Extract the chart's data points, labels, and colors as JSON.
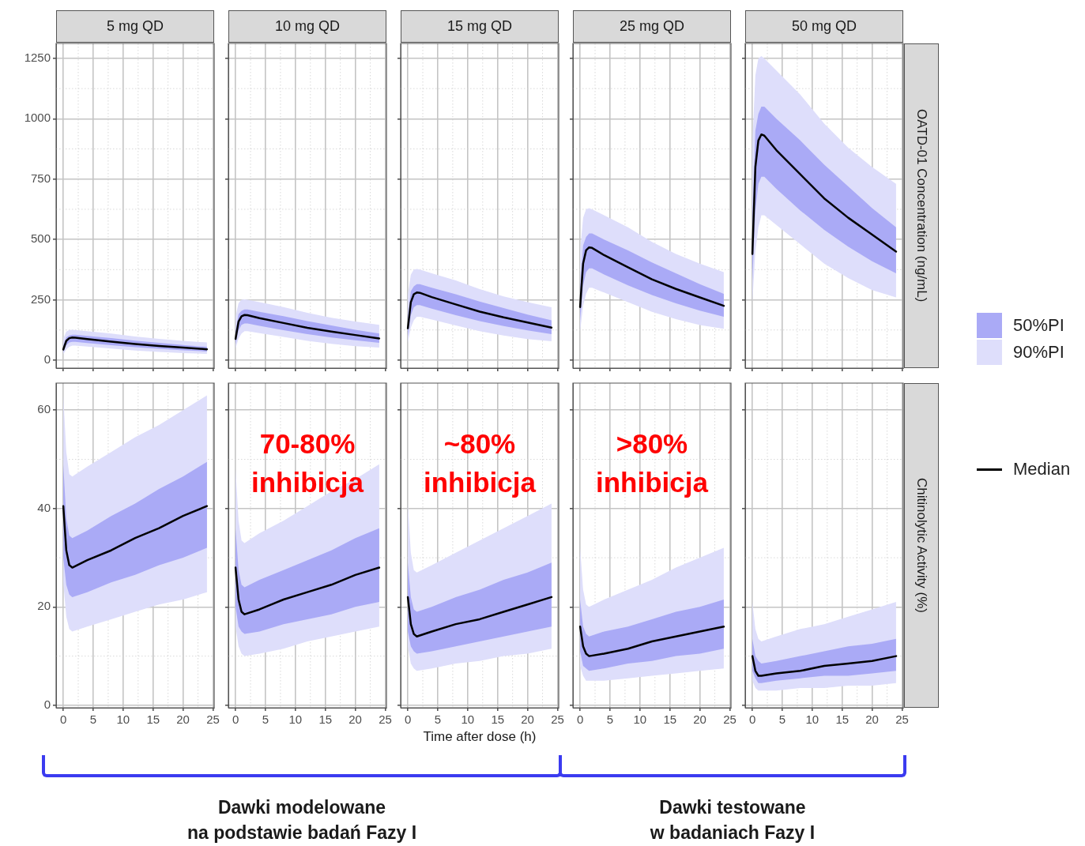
{
  "chart_data": [
    {
      "type": "line",
      "title": "5 mg QD",
      "xlim": [
        -1.2,
        25.2
      ],
      "xticks": [
        0,
        5,
        10,
        15,
        20,
        25
      ],
      "ylim": [
        -33,
        1312
      ],
      "yticks": [
        0,
        250,
        500,
        750,
        1000,
        1250
      ],
      "grid": true,
      "tick_labels": "y",
      "legend": "right",
      "x": [
        0,
        0.5,
        1,
        1.5,
        2,
        4,
        8,
        12,
        16,
        20,
        24
      ],
      "series": [
        {
          "name": "50%PI",
          "color": "#aaaaf6",
          "values": [
            null,
            null,
            null,
            null,
            null,
            null,
            null,
            null,
            null,
            null,
            null
          ],
          "lower": [
            33,
            62,
            73,
            76,
            76,
            71,
            62,
            54,
            47,
            41,
            36
          ],
          "upper": [
            60,
            95,
            102,
            105,
            105,
            100,
            91,
            81,
            72,
            63,
            55
          ]
        },
        {
          "name": "90%PI",
          "color": "#dedefb",
          "values": [
            null,
            null,
            null,
            null,
            null,
            null,
            null,
            null,
            null,
            null,
            null
          ],
          "lower": [
            24,
            45,
            55,
            60,
            60,
            56,
            48,
            40,
            34,
            29,
            26
          ],
          "upper": [
            90,
            118,
            125,
            126,
            125,
            120,
            110,
            98,
            88,
            80,
            73
          ]
        },
        {
          "name": "Median",
          "color": "#000000",
          "values": [
            44,
            80,
            91,
            93.5,
            93,
            87,
            77,
            67,
            59,
            52,
            45
          ]
        }
      ]
    },
    {
      "type": "line",
      "title": "10 mg QD",
      "xlim": [
        -1.2,
        25.2
      ],
      "xticks": [
        0,
        5,
        10,
        15,
        20,
        25
      ],
      "ylim": [
        -33,
        1312
      ],
      "yticks": [
        0,
        250,
        500,
        750,
        1000,
        1250
      ],
      "grid": true,
      "tick_labels": false,
      "x": [
        0,
        0.5,
        1,
        1.5,
        2,
        4,
        8,
        12,
        16,
        20,
        24
      ],
      "series": [
        {
          "color": "#aaaaf6",
          "values": [
            null,
            null,
            null,
            null,
            null,
            null,
            null,
            null,
            null,
            null,
            null
          ],
          "lower": [
            66,
            124,
            146,
            152,
            152,
            142,
            124,
            108,
            94,
            82,
            72
          ],
          "upper": [
            120,
            190,
            204,
            210,
            210,
            200,
            182,
            162,
            144,
            126,
            110
          ]
        },
        {
          "color": "#dedefb",
          "values": [
            null,
            null,
            null,
            null,
            null,
            null,
            null,
            null,
            null,
            null,
            null
          ],
          "lower": [
            48,
            90,
            110,
            120,
            120,
            112,
            96,
            80,
            68,
            58,
            52
          ],
          "upper": [
            180,
            236,
            250,
            252,
            250,
            240,
            220,
            196,
            176,
            160,
            146
          ]
        },
        {
          "color": "#000000",
          "values": [
            88,
            160,
            182,
            187,
            186,
            174,
            154,
            134,
            118,
            104,
            90
          ]
        }
      ]
    },
    {
      "type": "line",
      "title": "15 mg QD",
      "xlim": [
        -1.2,
        25.2
      ],
      "xticks": [
        0,
        5,
        10,
        15,
        20,
        25
      ],
      "ylim": [
        -33,
        1312
      ],
      "yticks": [
        0,
        250,
        500,
        750,
        1000,
        1250
      ],
      "grid": true,
      "tick_labels": false,
      "x": [
        0,
        0.5,
        1,
        1.5,
        2,
        4,
        8,
        12,
        16,
        20,
        24
      ],
      "series": [
        {
          "color": "#aaaaf6",
          "values": [
            null,
            null,
            null,
            null,
            null,
            null,
            null,
            null,
            null,
            null,
            null
          ],
          "lower": [
            99,
            186,
            219,
            228,
            228,
            213,
            186,
            162,
            141,
            123,
            108
          ],
          "upper": [
            180,
            285,
            306,
            315,
            315,
            300,
            273,
            243,
            216,
            189,
            165
          ]
        },
        {
          "color": "#dedefb",
          "values": [
            null,
            null,
            null,
            null,
            null,
            null,
            null,
            null,
            null,
            null,
            null
          ],
          "lower": [
            72,
            135,
            165,
            180,
            180,
            168,
            144,
            120,
            102,
            87,
            78
          ],
          "upper": [
            270,
            354,
            375,
            378,
            375,
            360,
            330,
            294,
            264,
            240,
            219
          ]
        },
        {
          "color": "#000000",
          "values": [
            132,
            240,
            273,
            280,
            279,
            261,
            231,
            201,
            177,
            156,
            135
          ]
        }
      ]
    },
    {
      "type": "line",
      "title": "25 mg QD",
      "xlim": [
        -1.2,
        25.2
      ],
      "xticks": [
        0,
        5,
        10,
        15,
        20,
        25
      ],
      "ylim": [
        -33,
        1312
      ],
      "yticks": [
        0,
        250,
        500,
        750,
        1000,
        1250
      ],
      "grid": true,
      "tick_labels": false,
      "x": [
        0,
        0.5,
        1,
        1.5,
        2,
        4,
        8,
        12,
        16,
        20,
        24
      ],
      "series": [
        {
          "color": "#aaaaf6",
          "values": [
            null,
            null,
            null,
            null,
            null,
            null,
            null,
            null,
            null,
            null,
            null
          ],
          "lower": [
            165,
            310,
            365,
            380,
            380,
            355,
            310,
            270,
            235,
            205,
            180
          ],
          "upper": [
            300,
            475,
            510,
            525,
            525,
            500,
            455,
            405,
            360,
            315,
            275
          ]
        },
        {
          "color": "#dedefb",
          "values": [
            null,
            null,
            null,
            null,
            null,
            null,
            null,
            null,
            null,
            null,
            null
          ],
          "lower": [
            120,
            225,
            275,
            300,
            300,
            280,
            240,
            200,
            170,
            145,
            130
          ],
          "upper": [
            450,
            590,
            625,
            630,
            625,
            600,
            550,
            490,
            440,
            400,
            365
          ]
        },
        {
          "color": "#000000",
          "values": [
            220,
            400,
            455,
            467,
            465,
            435,
            385,
            335,
            295,
            260,
            225
          ]
        }
      ]
    },
    {
      "type": "line",
      "title": "50 mg QD",
      "ylabel": "OATD-01 Concentration (ng/mL)",
      "xlim": [
        -1.2,
        25.2
      ],
      "xticks": [
        0,
        5,
        10,
        15,
        20,
        25
      ],
      "ylim": [
        -33,
        1312
      ],
      "yticks": [
        0,
        250,
        500,
        750,
        1000,
        1250
      ],
      "grid": true,
      "tick_labels": false,
      "x": [
        0,
        0.5,
        1,
        1.5,
        2,
        4,
        8,
        12,
        16,
        20,
        24
      ],
      "series": [
        {
          "color": "#aaaaf6",
          "values": [
            null,
            null,
            null,
            null,
            null,
            null,
            null,
            null,
            null,
            null,
            null
          ],
          "lower": [
            330,
            620,
            730,
            760,
            760,
            710,
            620,
            540,
            470,
            410,
            360
          ],
          "upper": [
            600,
            950,
            1020,
            1050,
            1050,
            1000,
            910,
            810,
            720,
            630,
            550
          ]
        },
        {
          "color": "#dedefb",
          "values": [
            null,
            null,
            null,
            null,
            null,
            null,
            null,
            null,
            null,
            null,
            null
          ],
          "lower": [
            240,
            450,
            550,
            600,
            600,
            560,
            480,
            400,
            340,
            290,
            260
          ],
          "upper": [
            900,
            1180,
            1250,
            1260,
            1250,
            1200,
            1100,
            980,
            880,
            800,
            730
          ]
        },
        {
          "color": "#000000",
          "values": [
            440,
            800,
            910,
            935,
            930,
            870,
            770,
            670,
            590,
            520,
            450
          ]
        }
      ]
    },
    {
      "type": "line",
      "xlim": [
        -1.2,
        25.2
      ],
      "xticks": [
        0,
        5,
        10,
        15,
        20,
        25
      ],
      "ylim": [
        -0.5,
        65.5
      ],
      "yticks": [
        0,
        20,
        40,
        60
      ],
      "grid": true,
      "x": [
        0,
        0.5,
        1,
        1.5,
        4,
        8,
        12,
        16,
        20,
        24
      ],
      "series": [
        {
          "color": "#aaaaf6",
          "values": [
            null,
            null,
            null,
            null,
            null,
            null,
            null,
            null,
            null,
            null
          ],
          "lower": [
            30,
            24.5,
            22.5,
            22,
            23,
            25,
            26.5,
            28.5,
            30,
            32
          ],
          "upper": [
            49,
            38,
            34.5,
            34,
            35.5,
            38.5,
            41,
            44,
            46.5,
            49.5
          ]
        },
        {
          "color": "#dedefb",
          "values": [
            null,
            null,
            null,
            null,
            null,
            null,
            null,
            null,
            null,
            null
          ],
          "lower": [
            25,
            18,
            15.5,
            15,
            16,
            17.5,
            19,
            20.5,
            21.5,
            23
          ],
          "upper": [
            63,
            51.5,
            47,
            46.5,
            48.5,
            51.5,
            54.5,
            57,
            60,
            63
          ]
        },
        {
          "color": "#000000",
          "values": [
            40.5,
            31.5,
            28.5,
            28,
            29.5,
            31.5,
            34,
            36,
            38.5,
            40.5
          ]
        }
      ]
    },
    {
      "type": "line",
      "xlim": [
        -1.2,
        25.2
      ],
      "xticks": [
        0,
        5,
        10,
        15,
        20,
        25
      ],
      "ylim": [
        -0.5,
        65.5
      ],
      "yticks": [
        0,
        20,
        40,
        60
      ],
      "grid": true,
      "tick_labels": "x",
      "annotations": [
        "70-80%\ninhibicja",
        "Dawki modelowane\nna podstawie badań Fazy I"
      ],
      "x": [
        0,
        0.5,
        1,
        1.5,
        4,
        8,
        12,
        16,
        20,
        24
      ],
      "series": [
        {
          "color": "#aaaaf6",
          "values": [
            null,
            null,
            null,
            null,
            null,
            null,
            null,
            null,
            null,
            null
          ],
          "lower": [
            20,
            16,
            15,
            14.5,
            15,
            16.5,
            17.5,
            18.5,
            20,
            21
          ],
          "upper": [
            36,
            27.5,
            24.5,
            24,
            25.5,
            27.5,
            29.5,
            31.5,
            34,
            36
          ]
        },
        {
          "color": "#dedefb",
          "values": [
            null,
            null,
            null,
            null,
            null,
            null,
            null,
            null,
            null,
            null
          ],
          "lower": [
            16,
            12,
            10.5,
            10,
            10.5,
            11.5,
            13,
            14,
            15,
            16
          ],
          "upper": [
            48,
            37.5,
            33.5,
            33,
            35,
            37.5,
            40.5,
            43.5,
            46,
            49
          ]
        },
        {
          "color": "#000000",
          "values": [
            28,
            21.5,
            19,
            18.5,
            19.5,
            21.5,
            23,
            24.5,
            26.5,
            28
          ]
        }
      ]
    },
    {
      "type": "line",
      "xlabel": "Time after dose (h)",
      "xlim": [
        -1.2,
        25.2
      ],
      "xticks": [
        0,
        5,
        10,
        15,
        20,
        25
      ],
      "ylim": [
        -0.5,
        65.5
      ],
      "yticks": [
        0,
        20,
        40,
        60
      ],
      "grid": true,
      "tick_labels": "x",
      "annotations": [
        "~80%\ninhibicja"
      ],
      "x": [
        0,
        0.5,
        1,
        1.5,
        4,
        8,
        12,
        16,
        20,
        24
      ],
      "series": [
        {
          "color": "#aaaaf6",
          "values": [
            null,
            null,
            null,
            null,
            null,
            null,
            null,
            null,
            null,
            null
          ],
          "lower": [
            15,
            12,
            11,
            10.5,
            11,
            12,
            13,
            14,
            15,
            16
          ],
          "upper": [
            29,
            22,
            19.5,
            19,
            20,
            22,
            23.5,
            25.5,
            27,
            29
          ]
        },
        {
          "color": "#dedefb",
          "values": [
            null,
            null,
            null,
            null,
            null,
            null,
            null,
            null,
            null,
            null
          ],
          "lower": [
            12,
            8.5,
            7.5,
            7,
            7.5,
            8.5,
            9,
            10,
            10.5,
            11.5
          ],
          "upper": [
            41,
            31,
            27.5,
            27,
            28.5,
            31,
            33.5,
            36,
            38.5,
            41
          ]
        },
        {
          "color": "#000000",
          "values": [
            22,
            16.5,
            14.5,
            14,
            15,
            16.5,
            17.5,
            19,
            20.5,
            22
          ]
        }
      ]
    },
    {
      "type": "line",
      "xlim": [
        -1.2,
        25.2
      ],
      "xticks": [
        0,
        5,
        10,
        15,
        20,
        25
      ],
      "ylim": [
        -0.5,
        65.5
      ],
      "yticks": [
        0,
        20,
        40,
        60
      ],
      "grid": true,
      "tick_labels": "x",
      "annotations": [
        ">80%\ninhibicja",
        "Dawki testowane\nw badaniach Fazy I"
      ],
      "x": [
        0,
        0.5,
        1,
        1.5,
        4,
        8,
        12,
        16,
        20,
        24
      ],
      "series": [
        {
          "color": "#aaaaf6",
          "values": [
            null,
            null,
            null,
            null,
            null,
            null,
            null,
            null,
            null,
            null
          ],
          "lower": [
            11,
            8,
            7.5,
            7,
            7.5,
            8.5,
            9,
            10,
            10.5,
            11.5
          ],
          "upper": [
            21.5,
            16,
            14.5,
            14,
            15,
            16,
            17.5,
            19,
            20,
            21.5
          ]
        },
        {
          "color": "#dedefb",
          "values": [
            null,
            null,
            null,
            null,
            null,
            null,
            null,
            null,
            null,
            null
          ],
          "lower": [
            8,
            6,
            5,
            5,
            5,
            5.5,
            6,
            6.5,
            7,
            7.5
          ],
          "upper": [
            32,
            23.5,
            20.5,
            20,
            21.5,
            23.5,
            25.5,
            28,
            30,
            32
          ]
        },
        {
          "color": "#000000",
          "values": [
            16,
            12,
            10.5,
            10,
            10.5,
            11.5,
            13,
            14,
            15,
            16
          ]
        }
      ]
    },
    {
      "type": "line",
      "ylabel": "Chitinolytic Activity (%)",
      "xlim": [
        -1.2,
        25.2
      ],
      "xticks": [
        0,
        5,
        10,
        15,
        20,
        25
      ],
      "ylim": [
        -0.5,
        65.5
      ],
      "yticks": [
        0,
        20,
        40,
        60
      ],
      "grid": true,
      "tick_labels": "x",
      "x": [
        0,
        0.5,
        1,
        1.5,
        4,
        8,
        12,
        16,
        20,
        24
      ],
      "series": [
        {
          "color": "#aaaaf6",
          "values": [
            null,
            null,
            null,
            null,
            null,
            null,
            null,
            null,
            null,
            null
          ],
          "lower": [
            7,
            5.5,
            4.5,
            4.5,
            5,
            5.5,
            6,
            6,
            6.5,
            7
          ],
          "upper": [
            13.5,
            10,
            9,
            8.5,
            9,
            10,
            11,
            12,
            12.5,
            13.5
          ]
        },
        {
          "color": "#dedefb",
          "values": [
            null,
            null,
            null,
            null,
            null,
            null,
            null,
            null,
            null,
            null
          ],
          "lower": [
            5,
            3.5,
            3,
            3,
            3,
            3.5,
            3.5,
            4,
            4,
            4.5
          ],
          "upper": [
            21,
            15.5,
            13.5,
            13,
            14,
            15.5,
            16.5,
            18,
            19.5,
            21
          ]
        },
        {
          "color": "#000000",
          "values": [
            10,
            7,
            6,
            6,
            6.5,
            7,
            8,
            8.5,
            9,
            10
          ]
        }
      ]
    }
  ]
}
